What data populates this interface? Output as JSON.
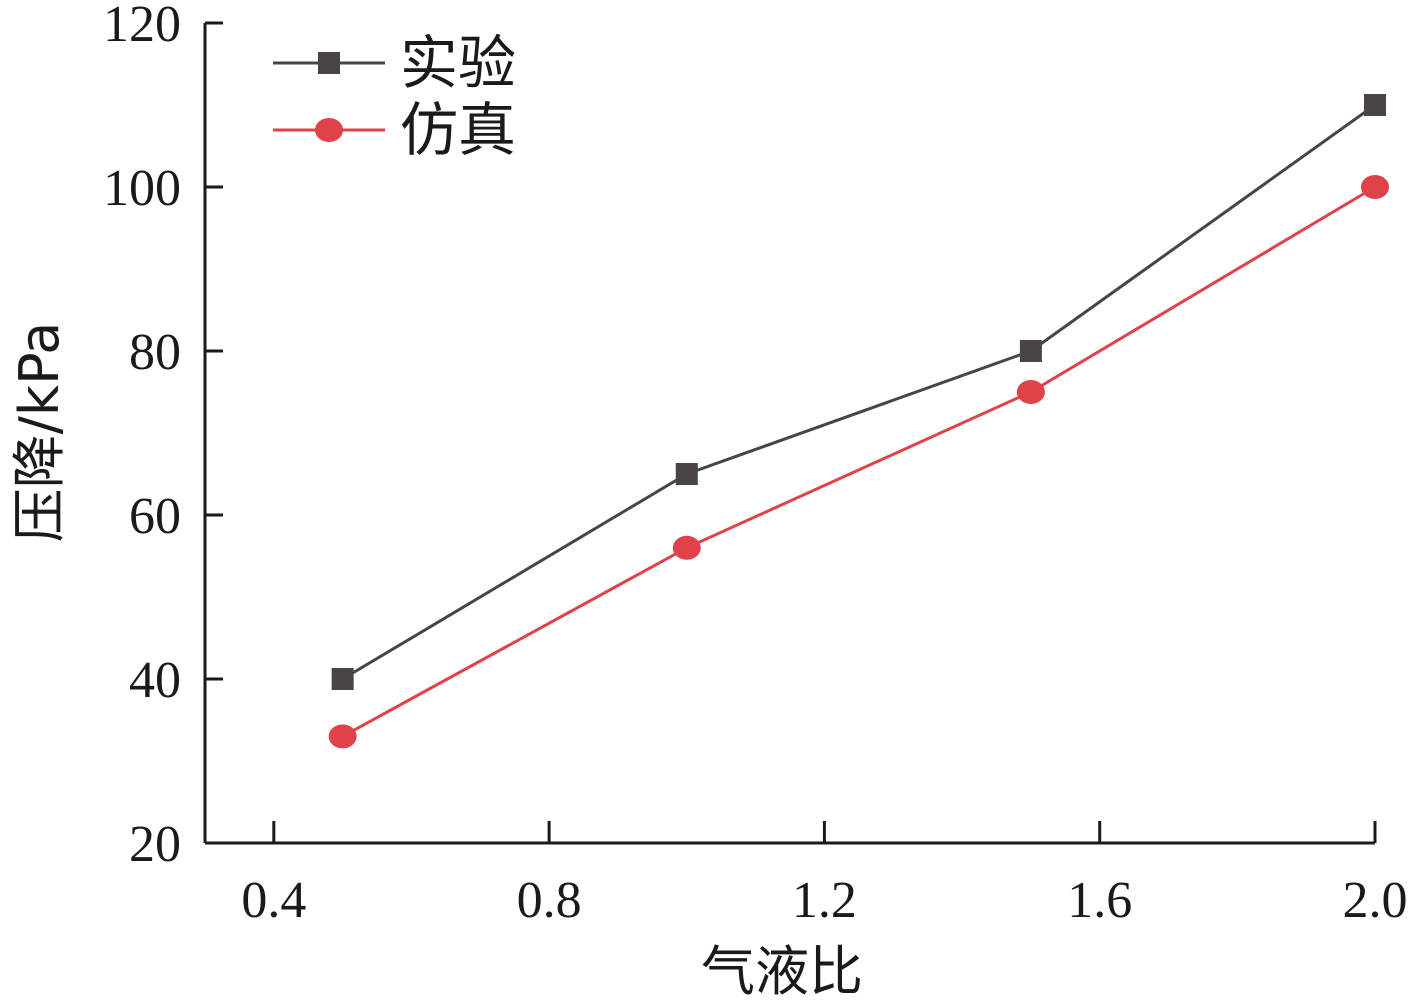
{
  "chart_data": {
    "type": "line",
    "xlabel": "气液比",
    "ylabel": "压降/kPa",
    "xlim": [
      0.3,
      2.0
    ],
    "ylim": [
      20,
      120
    ],
    "xticks": [
      0.4,
      0.8,
      1.2,
      1.6,
      2.0
    ],
    "xtick_labels": [
      "0.4",
      "0.8",
      "1.2",
      "1.6",
      "2.0"
    ],
    "yticks": [
      20,
      40,
      60,
      80,
      100,
      120
    ],
    "ytick_labels": [
      "20",
      "40",
      "60",
      "80",
      "100",
      "120"
    ],
    "grid": false,
    "legend_position": "top-left",
    "x": [
      0.5,
      1.0,
      1.5,
      2.0
    ],
    "series": [
      {
        "name": "实验",
        "values": [
          40,
          65,
          80,
          110
        ],
        "color": "#4a4444",
        "marker": "square"
      },
      {
        "name": "仿真",
        "values": [
          33,
          56,
          75,
          100
        ],
        "color": "#e0424a",
        "marker": "circle"
      }
    ]
  }
}
